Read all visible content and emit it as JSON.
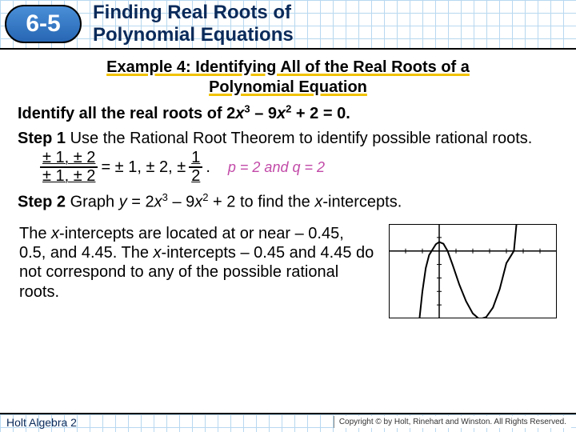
{
  "header": {
    "lesson_number": "6-5",
    "title_line1": "Finding Real Roots of",
    "title_line2": "Polynomial Equations"
  },
  "example": {
    "heading_line1": "Example 4: Identifying All of the Real Roots of a",
    "heading_line2": "Polynomial Equation",
    "problem_prefix": "Identify all the real roots of 2",
    "problem_x3": "x",
    "problem_mid": " – 9",
    "problem_x2": "x",
    "problem_suffix": " + 2 = 0.",
    "step1_label": "Step 1",
    "step1_text": " Use the Rational Root Theorem to identify possible rational roots.",
    "frac1_num": "± 1, ± 2",
    "frac1_den": "± 1, ± 2",
    "equals": " = ± 1, ± 2, ± ",
    "frac2_num": "1",
    "frac2_den": "2",
    "period": ".",
    "pq_note": "p = 2 and q = 2",
    "step2_label": "Step 2",
    "step2_text_a": " Graph ",
    "step2_y": "y",
    "step2_text_b": " = 2",
    "step2_x3": "x",
    "step2_text_c": " – 9",
    "step2_x2": "x",
    "step2_text_d": " + 2 to find the ",
    "step2_xint": "x",
    "step2_text_e": "-intercepts.",
    "intercepts_a": "The ",
    "intercepts_x1": "x",
    "intercepts_b": "-intercepts are located at or near – 0.45, 0.5, and 4.45. The ",
    "intercepts_x2": "x",
    "intercepts_c": "-intercepts – 0.45 and 4.45 do not correspond to any of the possible rational roots."
  },
  "graph": {
    "border_color": "#000000",
    "axis_color": "#000000",
    "tick_color": "#000000",
    "curve_color": "#000000",
    "background": "#ffffff",
    "xlim": [
      -3,
      7
    ],
    "ylim": [
      -15,
      6
    ],
    "xticks": [
      -2,
      -1,
      0,
      1,
      2,
      3,
      4,
      5,
      6
    ],
    "yticks": [
      -12,
      -9,
      -6,
      -3,
      0,
      3
    ],
    "curve_points": [
      [
        -1.2,
        -16
      ],
      [
        -1.0,
        -9
      ],
      [
        -0.8,
        -3.8
      ],
      [
        -0.6,
        -0.9
      ],
      [
        -0.45,
        0
      ],
      [
        -0.2,
        1.5
      ],
      [
        0,
        2
      ],
      [
        0.25,
        1.6
      ],
      [
        0.5,
        0
      ],
      [
        0.8,
        -3.1
      ],
      [
        1.2,
        -7.5
      ],
      [
        1.6,
        -11.2
      ],
      [
        2.0,
        -13.9
      ],
      [
        2.4,
        -15.2
      ],
      [
        2.8,
        -14.7
      ],
      [
        3.2,
        -12.6
      ],
      [
        3.6,
        -8.5
      ],
      [
        4.0,
        -2.7
      ],
      [
        4.45,
        0
      ],
      [
        4.6,
        6
      ],
      [
        4.8,
        16
      ]
    ]
  },
  "footer": {
    "left": "Holt Algebra 2",
    "right": "Copyright © by Holt, Rinehart and Winston. All Rights Reserved."
  }
}
